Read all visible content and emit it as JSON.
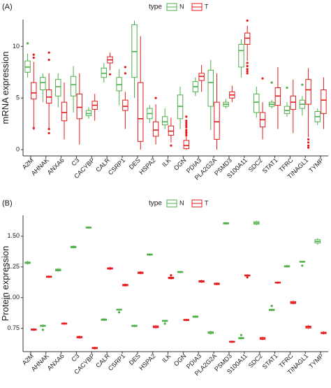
{
  "colors": {
    "N": "#4daf4a",
    "T": "#e41a1c",
    "axis": "#333333",
    "text": "#1a1a1a"
  },
  "chart_data": [
    {
      "type": "box",
      "panel_label": "(A)",
      "ylabel": "mRNA expression",
      "legend_title": "type",
      "legend_placement": "top",
      "ylim": [
        -0.6,
        12.6
      ],
      "yticks": [
        0,
        5,
        10
      ],
      "grid": false,
      "categories": [
        "A2M",
        "AHNAK",
        "ANXA6",
        "C3",
        "CACYBP",
        "CALR",
        "CSRP1",
        "DES",
        "HSPA2",
        "ILK",
        "OGN",
        "PDIA3",
        "PLA2G2A",
        "PSMD3",
        "S100A11",
        "SDC2",
        "STAT1",
        "TFRC",
        "TINAGL1",
        "TYMP"
      ],
      "series": [
        {
          "name": "N",
          "boxes": [
            {
              "min": 7.0,
              "q1": 7.5,
              "median": 8.0,
              "q3": 8.6,
              "max": 9.3,
              "outliers": [
                10.3
              ]
            },
            {
              "min": 4.6,
              "q1": 5.8,
              "median": 6.5,
              "q3": 7.0,
              "max": 7.4,
              "outliers": []
            },
            {
              "min": 4.1,
              "q1": 5.2,
              "median": 6.1,
              "q3": 6.8,
              "max": 7.4,
              "outliers": []
            },
            {
              "min": 3.6,
              "q1": 5.2,
              "median": 6.3,
              "q3": 7.1,
              "max": 8.1,
              "outliers": []
            },
            {
              "min": 3.0,
              "q1": 3.3,
              "median": 3.5,
              "q3": 3.8,
              "max": 4.1,
              "outliers": []
            },
            {
              "min": 6.5,
              "q1": 7.0,
              "median": 7.4,
              "q3": 7.9,
              "max": 8.4,
              "outliers": []
            },
            {
              "min": 4.3,
              "q1": 5.7,
              "median": 6.3,
              "q3": 7.0,
              "max": 7.8,
              "outliers": []
            },
            {
              "min": 5.0,
              "q1": 7.0,
              "median": 9.5,
              "q3": 12.1,
              "max": 12.5,
              "outliers": []
            },
            {
              "min": 2.6,
              "q1": 3.0,
              "median": 3.5,
              "q3": 4.0,
              "max": 4.3,
              "outliers": []
            },
            {
              "min": 2.0,
              "q1": 2.4,
              "median": 2.7,
              "q3": 3.2,
              "max": 4.0,
              "outliers": []
            },
            {
              "min": 2.0,
              "q1": 3.0,
              "median": 4.2,
              "q3": 5.3,
              "max": 6.1,
              "outliers": []
            },
            {
              "min": 5.2,
              "q1": 5.6,
              "median": 6.1,
              "q3": 6.6,
              "max": 7.0,
              "outliers": []
            },
            {
              "min": 1.9,
              "q1": 4.2,
              "median": 6.5,
              "q3": 7.7,
              "max": 8.7,
              "outliers": []
            },
            {
              "min": 4.0,
              "q1": 4.2,
              "median": 4.4,
              "q3": 4.6,
              "max": 4.9,
              "outliers": []
            },
            {
              "min": 7.0,
              "q1": 8.0,
              "median": 9.6,
              "q3": 10.2,
              "max": 10.7,
              "outliers": []
            },
            {
              "min": 3.1,
              "q1": 3.6,
              "median": 4.6,
              "q3": 5.4,
              "max": 6.1,
              "outliers": []
            },
            {
              "min": 4.0,
              "q1": 4.2,
              "median": 4.4,
              "q3": 4.6,
              "max": 4.8,
              "outliers": [
                6.5
              ]
            },
            {
              "min": 3.2,
              "q1": 3.5,
              "median": 3.8,
              "q3": 4.2,
              "max": 4.6,
              "outliers": [
                6.0
              ]
            },
            {
              "min": 3.3,
              "q1": 4.0,
              "median": 4.4,
              "q3": 4.8,
              "max": 5.2,
              "outliers": [
                6.3
              ]
            },
            {
              "min": 2.4,
              "q1": 2.7,
              "median": 3.2,
              "q3": 3.7,
              "max": 4.0,
              "outliers": []
            }
          ]
        },
        {
          "name": "T",
          "boxes": [
            {
              "min": 1.9,
              "q1": 4.9,
              "median": 5.5,
              "q3": 6.5,
              "max": 8.5,
              "outliers": [
                9.2,
                8.9,
                2.1
              ]
            },
            {
              "min": 2.0,
              "q1": 4.5,
              "median": 5.1,
              "q3": 5.8,
              "max": 7.4,
              "outliers": [
                9.4,
                8.7,
                2.0,
                1.6
              ]
            },
            {
              "min": 1.0,
              "q1": 2.8,
              "median": 3.6,
              "q3": 4.6,
              "max": 6.5,
              "outliers": []
            },
            {
              "min": 0.5,
              "q1": 3.0,
              "median": 4.1,
              "q3": 5.4,
              "max": 7.4,
              "outliers": []
            },
            {
              "min": 2.8,
              "q1": 3.9,
              "median": 4.3,
              "q3": 4.7,
              "max": 5.4,
              "outliers": []
            },
            {
              "min": 7.7,
              "q1": 8.4,
              "median": 8.7,
              "q3": 9.0,
              "max": 9.4,
              "outliers": [
                7.3
              ]
            },
            {
              "min": 2.0,
              "q1": 3.8,
              "median": 4.2,
              "q3": 4.8,
              "max": 5.6,
              "outliers": [
                8.0,
                7.4
              ]
            },
            {
              "min": 0.0,
              "q1": 0.8,
              "median": 3.0,
              "q3": 6.5,
              "max": 11.0,
              "outliers": []
            },
            {
              "min": 0.5,
              "q1": 1.3,
              "median": 1.9,
              "q3": 2.7,
              "max": 4.4,
              "outliers": [
                5.0
              ]
            },
            {
              "min": 0.7,
              "q1": 1.4,
              "median": 1.8,
              "q3": 2.3,
              "max": 3.1,
              "outliers": [
                0.4
              ]
            },
            {
              "min": 0.0,
              "q1": 0.1,
              "median": 0.4,
              "q3": 0.9,
              "max": 2.5,
              "outliers": [
                3.2,
                2.8,
                2.6,
                2.4,
                2.2,
                1.9,
                1.7,
                1.6,
                1.4
              ]
            },
            {
              "min": 5.6,
              "q1": 6.7,
              "median": 7.1,
              "q3": 7.4,
              "max": 8.2,
              "outliers": []
            },
            {
              "min": 0.0,
              "q1": 1.0,
              "median": 2.7,
              "q3": 4.6,
              "max": 7.4,
              "outliers": []
            },
            {
              "min": 4.6,
              "q1": 5.0,
              "median": 5.3,
              "q3": 5.6,
              "max": 6.2,
              "outliers": []
            },
            {
              "min": 8.6,
              "q1": 10.2,
              "median": 10.8,
              "q3": 11.3,
              "max": 12.0,
              "outliers": [
                12.5,
                8.4,
                8.1,
                7.8,
                7.6,
                7.4
              ]
            },
            {
              "min": 1.0,
              "q1": 2.2,
              "median": 2.9,
              "q3": 3.6,
              "max": 4.6,
              "outliers": [
                6.9
              ]
            },
            {
              "min": 2.0,
              "q1": 4.3,
              "median": 5.2,
              "q3": 6.0,
              "max": 8.0,
              "outliers": []
            },
            {
              "min": 1.6,
              "q1": 3.9,
              "median": 4.6,
              "q3": 5.2,
              "max": 6.8,
              "outliers": []
            },
            {
              "min": 1.2,
              "q1": 4.4,
              "median": 5.8,
              "q3": 6.8,
              "max": 7.9,
              "outliers": [
                1.0,
                0.7,
                0.4,
                0.2
              ]
            },
            {
              "min": 2.0,
              "q1": 3.5,
              "median": 4.8,
              "q3": 5.8,
              "max": 7.0,
              "outliers": []
            }
          ]
        }
      ]
    },
    {
      "type": "box",
      "panel_label": "(B)",
      "ylabel": "Protein expression",
      "legend_title": "type",
      "legend_placement": "top",
      "ylim": [
        0.56,
        1.67
      ],
      "yticks": [
        0.75,
        1.0,
        1.25,
        1.5
      ],
      "ytick_labels": [
        "0.75",
        "1.00",
        "1.25",
        "1.50"
      ],
      "grid": false,
      "categories": [
        "A2M",
        "AHNAK",
        "ANXA6",
        "C3",
        "CACYBP",
        "CALR",
        "CSRP1",
        "DES",
        "HSPA2",
        "ILK",
        "OGN",
        "PDIA3",
        "PLA2G2A",
        "PSMD3",
        "S100A11",
        "SDC2",
        "STAT1",
        "TFRC",
        "TINAGL1",
        "TYMP"
      ],
      "series": [
        {
          "name": "N",
          "boxes": [
            {
              "min": 1.27,
              "q1": 1.278,
              "median": 1.283,
              "q3": 1.29,
              "max": 1.298,
              "outliers": []
            },
            {
              "min": 0.758,
              "q1": 0.766,
              "median": 0.77,
              "q3": 0.775,
              "max": 0.782,
              "outliers": [
                0.738
              ]
            },
            {
              "min": 1.21,
              "q1": 1.218,
              "median": 1.225,
              "q3": 1.232,
              "max": 1.24,
              "outliers": []
            },
            {
              "min": 1.4,
              "q1": 1.406,
              "median": 1.412,
              "q3": 1.418,
              "max": 1.425,
              "outliers": []
            },
            {
              "min": 1.56,
              "q1": 1.566,
              "median": 1.57,
              "q3": 1.575,
              "max": 1.58,
              "outliers": []
            },
            {
              "min": 0.81,
              "q1": 0.815,
              "median": 0.82,
              "q3": 0.826,
              "max": 0.832,
              "outliers": []
            },
            {
              "min": 0.893,
              "q1": 0.898,
              "median": 0.902,
              "q3": 0.906,
              "max": 0.91,
              "outliers": [
                0.88
              ]
            },
            {
              "min": 0.76,
              "q1": 0.765,
              "median": 0.77,
              "q3": 0.775,
              "max": 0.78,
              "outliers": []
            },
            {
              "min": 1.34,
              "q1": 1.346,
              "median": 1.35,
              "q3": 1.355,
              "max": 1.36,
              "outliers": []
            },
            {
              "min": 0.8,
              "q1": 0.806,
              "median": 0.81,
              "q3": 0.815,
              "max": 0.82,
              "outliers": [
                0.788
              ]
            },
            {
              "min": 1.198,
              "q1": 1.204,
              "median": 1.208,
              "q3": 1.213,
              "max": 1.218,
              "outliers": []
            },
            {
              "min": 0.835,
              "q1": 0.84,
              "median": 0.845,
              "q3": 0.85,
              "max": 0.855,
              "outliers": []
            },
            {
              "min": 0.7,
              "q1": 0.708,
              "median": 0.714,
              "q3": 0.722,
              "max": 0.73,
              "outliers": []
            },
            {
              "min": 1.595,
              "q1": 1.6,
              "median": 1.605,
              "q3": 1.61,
              "max": 1.615,
              "outliers": []
            },
            {
              "min": 0.66,
              "q1": 0.665,
              "median": 0.67,
              "q3": 0.675,
              "max": 0.68,
              "outliers": [
                0.695
              ]
            },
            {
              "min": 1.59,
              "q1": 1.598,
              "median": 1.608,
              "q3": 1.618,
              "max": 1.625,
              "outliers": []
            },
            {
              "min": 0.89,
              "q1": 0.895,
              "median": 0.9,
              "q3": 0.905,
              "max": 0.91,
              "outliers": [
                0.932
              ]
            },
            {
              "min": 1.245,
              "q1": 1.25,
              "median": 1.255,
              "q3": 1.26,
              "max": 1.266,
              "outliers": []
            },
            {
              "min": 1.284,
              "q1": 1.288,
              "median": 1.292,
              "q3": 1.296,
              "max": 1.3,
              "outliers": [
                1.26
              ]
            },
            {
              "min": 1.43,
              "q1": 1.445,
              "median": 1.458,
              "q3": 1.472,
              "max": 1.485,
              "outliers": []
            }
          ]
        },
        {
          "name": "T",
          "boxes": [
            {
              "min": 0.728,
              "q1": 0.735,
              "median": 0.74,
              "q3": 0.745,
              "max": 0.75,
              "outliers": []
            },
            {
              "min": 1.16,
              "q1": 1.165,
              "median": 1.17,
              "q3": 1.175,
              "max": 1.18,
              "outliers": []
            },
            {
              "min": 0.778,
              "q1": 0.784,
              "median": 0.788,
              "q3": 0.793,
              "max": 0.8,
              "outliers": []
            },
            {
              "min": 0.665,
              "q1": 0.672,
              "median": 0.678,
              "q3": 0.684,
              "max": 0.69,
              "outliers": []
            },
            {
              "min": 0.578,
              "q1": 0.584,
              "median": 0.59,
              "q3": 0.595,
              "max": 0.6,
              "outliers": []
            },
            {
              "min": 1.225,
              "q1": 1.232,
              "median": 1.238,
              "q3": 1.243,
              "max": 1.25,
              "outliers": []
            },
            {
              "min": 1.09,
              "q1": 1.096,
              "median": 1.102,
              "q3": 1.108,
              "max": 1.115,
              "outliers": []
            },
            {
              "min": 1.19,
              "q1": 1.196,
              "median": 1.202,
              "q3": 1.208,
              "max": 1.215,
              "outliers": []
            },
            {
              "min": 0.748,
              "q1": 0.755,
              "median": 0.762,
              "q3": 0.77,
              "max": 0.776,
              "outliers": []
            },
            {
              "min": 1.148,
              "q1": 1.154,
              "median": 1.16,
              "q3": 1.166,
              "max": 1.172,
              "outliers": [
                1.182
              ]
            },
            {
              "min": 0.808,
              "q1": 0.813,
              "median": 0.818,
              "q3": 0.823,
              "max": 0.828,
              "outliers": []
            },
            {
              "min": 1.12,
              "q1": 1.126,
              "median": 1.132,
              "q3": 1.138,
              "max": 1.145,
              "outliers": []
            },
            {
              "min": 1.1,
              "q1": 1.106,
              "median": 1.112,
              "q3": 1.118,
              "max": 1.124,
              "outliers": []
            },
            {
              "min": 0.63,
              "q1": 0.636,
              "median": 0.64,
              "q3": 0.645,
              "max": 0.65,
              "outliers": []
            },
            {
              "min": 1.17,
              "q1": 1.176,
              "median": 1.18,
              "q3": 1.185,
              "max": 1.19,
              "outliers": [
                1.165
              ]
            },
            {
              "min": 0.652,
              "q1": 0.66,
              "median": 0.668,
              "q3": 0.675,
              "max": 0.682,
              "outliers": []
            },
            {
              "min": 1.112,
              "q1": 1.118,
              "median": 1.122,
              "q3": 1.126,
              "max": 1.132,
              "outliers": []
            },
            {
              "min": 0.945,
              "q1": 0.952,
              "median": 0.96,
              "q3": 0.968,
              "max": 0.975,
              "outliers": []
            },
            {
              "min": 0.745,
              "q1": 0.752,
              "median": 0.76,
              "q3": 0.768,
              "max": 0.776,
              "outliers": []
            },
            {
              "min": 0.7,
              "q1": 0.707,
              "median": 0.712,
              "q3": 0.718,
              "max": 0.725,
              "outliers": []
            }
          ]
        }
      ]
    }
  ]
}
